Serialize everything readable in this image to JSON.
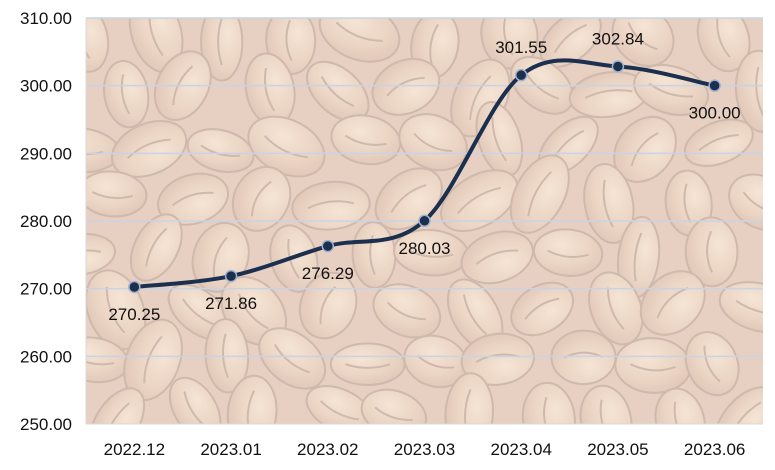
{
  "chart_data": {
    "type": "line",
    "title": "",
    "xlabel": "",
    "ylabel": "",
    "categories": [
      "2022.12",
      "2023.01",
      "2023.02",
      "2023.03",
      "2023.04",
      "2023.05",
      "2023.06"
    ],
    "series": [
      {
        "values": [
          270.25,
          271.86,
          276.29,
          280.03,
          301.55,
          302.84,
          300.0
        ],
        "data_labels": [
          "270.25",
          "271.86",
          "276.29",
          "280.03",
          "301.55",
          "302.84",
          "300.00"
        ]
      }
    ],
    "ylim": [
      250,
      310
    ],
    "y_ticks": [
      "250.00",
      "260.00",
      "270.00",
      "280.00",
      "290.00",
      "300.00",
      "310.00"
    ],
    "smooth": true,
    "grid": "horizontal",
    "legend": "none",
    "colors": {
      "line": "#1b2f4e",
      "marker_fill": "#1b2f4e",
      "marker_stroke": "#9fb3d0",
      "gridline": "#c9d3e6",
      "plot_background": "coffee-bean photo, light wash"
    }
  }
}
